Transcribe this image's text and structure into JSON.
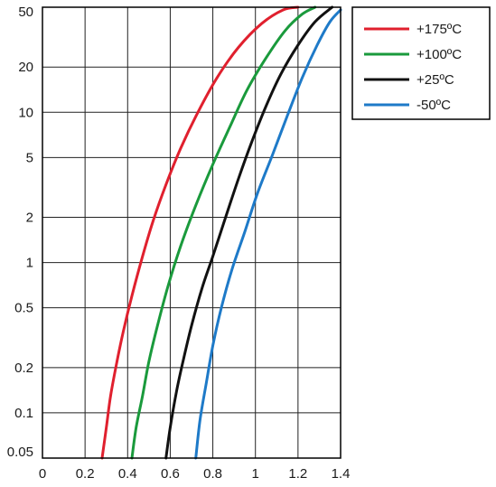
{
  "chart_data": {
    "type": "line",
    "title": "",
    "xlabel": "",
    "ylabel": "",
    "x_scale": "linear",
    "y_scale": "log",
    "xlim": [
      0,
      1.4
    ],
    "ylim": [
      0.05,
      50
    ],
    "x_ticks": [
      0,
      0.2,
      0.4,
      0.6,
      0.8,
      1,
      1.2,
      1.4
    ],
    "x_tick_labels": [
      "0",
      "0.2",
      "0.4",
      "0.6",
      "0.8",
      "1",
      "1.2",
      "1.4"
    ],
    "y_ticks": [
      0.05,
      0.1,
      0.2,
      0.5,
      1,
      2,
      5,
      10,
      20,
      50
    ],
    "y_tick_labels": [
      "0.05",
      "0.1",
      "0.2",
      "0.5",
      "1",
      "2",
      "5",
      "10",
      "20",
      "50"
    ],
    "grid": true,
    "legend_position": "top-right",
    "series": [
      {
        "name": "+175ºC",
        "color": "#e0202e",
        "points": [
          [
            0.28,
            0.05
          ],
          [
            0.3,
            0.08
          ],
          [
            0.32,
            0.13
          ],
          [
            0.35,
            0.22
          ],
          [
            0.38,
            0.35
          ],
          [
            0.42,
            0.6
          ],
          [
            0.47,
            1.1
          ],
          [
            0.52,
            1.9
          ],
          [
            0.58,
            3.3
          ],
          [
            0.65,
            5.8
          ],
          [
            0.73,
            10
          ],
          [
            0.82,
            17
          ],
          [
            0.92,
            27
          ],
          [
            1.03,
            39
          ],
          [
            1.13,
            48
          ],
          [
            1.2,
            50
          ]
        ]
      },
      {
        "name": "+100ºC",
        "color": "#1a9a3c",
        "points": [
          [
            0.42,
            0.05
          ],
          [
            0.44,
            0.08
          ],
          [
            0.47,
            0.13
          ],
          [
            0.5,
            0.22
          ],
          [
            0.54,
            0.38
          ],
          [
            0.59,
            0.7
          ],
          [
            0.65,
            1.3
          ],
          [
            0.72,
            2.4
          ],
          [
            0.8,
            4.5
          ],
          [
            0.88,
            8
          ],
          [
            0.96,
            14
          ],
          [
            1.05,
            23
          ],
          [
            1.14,
            35
          ],
          [
            1.22,
            45
          ],
          [
            1.28,
            50
          ]
        ]
      },
      {
        "name": "+25ºC",
        "color": "#111111",
        "points": [
          [
            0.58,
            0.05
          ],
          [
            0.6,
            0.08
          ],
          [
            0.63,
            0.14
          ],
          [
            0.66,
            0.22
          ],
          [
            0.7,
            0.38
          ],
          [
            0.75,
            0.68
          ],
          [
            0.8,
            1.1
          ],
          [
            0.86,
            2
          ],
          [
            0.92,
            3.6
          ],
          [
            0.98,
            6.2
          ],
          [
            1.05,
            11
          ],
          [
            1.12,
            18
          ],
          [
            1.2,
            28
          ],
          [
            1.28,
            40
          ],
          [
            1.36,
            50
          ]
        ]
      },
      {
        "name": "-50ºC",
        "color": "#1e7ac8",
        "points": [
          [
            0.72,
            0.05
          ],
          [
            0.74,
            0.09
          ],
          [
            0.77,
            0.16
          ],
          [
            0.8,
            0.28
          ],
          [
            0.84,
            0.5
          ],
          [
            0.89,
            0.9
          ],
          [
            0.95,
            1.6
          ],
          [
            1.01,
            2.9
          ],
          [
            1.08,
            5.2
          ],
          [
            1.15,
            9.5
          ],
          [
            1.22,
            17
          ],
          [
            1.29,
            28
          ],
          [
            1.35,
            40
          ],
          [
            1.4,
            48
          ]
        ]
      }
    ]
  }
}
